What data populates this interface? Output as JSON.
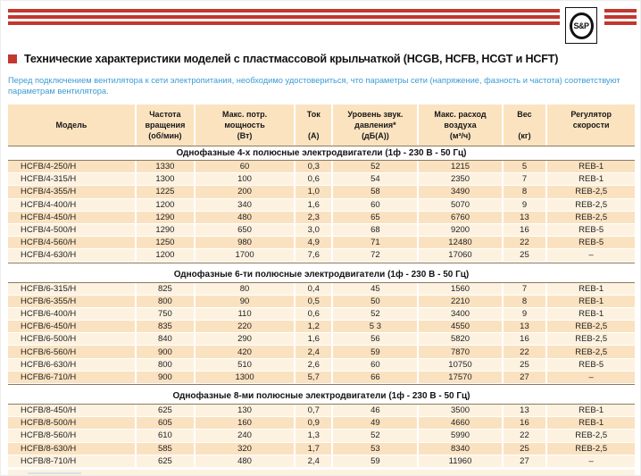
{
  "logo": {
    "text": "S&P"
  },
  "title": {
    "text": "Технические характеристики моделей с пластмассовой крыльчаткой (HCGB, HCFB, HCGT и HCFT)"
  },
  "note": {
    "text": "Перед подключением вентилятора к сети электропитания, необходимо удостовериться, что параметры сети (напряжение, фазность и частота) соответствуют параметрам вентилятора."
  },
  "colors": {
    "brand_red": "#c2372e",
    "note_blue": "#3a9bd5",
    "header_bg": "#fbe3c0",
    "row_light": "#fdf2e0",
    "row_dark": "#fae2c0"
  },
  "table": {
    "columns": [
      {
        "id": "model",
        "lines": [
          "Модель"
        ]
      },
      {
        "id": "rpm",
        "lines": [
          "Частота",
          "вращения",
          "(об/мин)"
        ]
      },
      {
        "id": "power",
        "lines": [
          "Макс. потр.",
          "мощность",
          "(Вт)"
        ]
      },
      {
        "id": "current",
        "lines": [
          "Ток",
          "",
          "(А)"
        ]
      },
      {
        "id": "noise",
        "lines": [
          "Уровень звук.",
          "давления*",
          "(дБ(А))"
        ]
      },
      {
        "id": "airflow",
        "lines": [
          "Макс. расход",
          "воздуха",
          "(м³/ч)"
        ]
      },
      {
        "id": "weight",
        "lines": [
          "Вес",
          "",
          "(кг)"
        ]
      },
      {
        "id": "controller",
        "lines": [
          "Регулятор",
          "скорости"
        ]
      }
    ],
    "sections": [
      {
        "title": "Однофазные 4-х полюсные электродвигатели (1ф - 230 В - 50 Гц)",
        "rows": [
          [
            "HCFB/4-250/H",
            "1330",
            "60",
            "0,3",
            "52",
            "1215",
            "5",
            "REB-1"
          ],
          [
            "HCFB/4-315/H",
            "1300",
            "100",
            "0,6",
            "54",
            "2350",
            "7",
            "REB-1"
          ],
          [
            "HCFB/4-355/H",
            "1225",
            "200",
            "1,0",
            "58",
            "3490",
            "8",
            "REB-2,5"
          ],
          [
            "HCFB/4-400/H",
            "1200",
            "340",
            "1,6",
            "60",
            "5070",
            "9",
            "REB-2,5"
          ],
          [
            "HCFB/4-450/H",
            "1290",
            "480",
            "2,3",
            "65",
            "6760",
            "13",
            "REB-2,5"
          ],
          [
            "HCFB/4-500/H",
            "1290",
            "650",
            "3,0",
            "68",
            "9200",
            "16",
            "REB-5"
          ],
          [
            "HCFB/4-560/H",
            "1250",
            "980",
            "4,9",
            "71",
            "12480",
            "22",
            "REB-5"
          ],
          [
            "HCFB/4-630/H",
            "1200",
            "1700",
            "7,6",
            "72",
            "17060",
            "25",
            "–"
          ]
        ]
      },
      {
        "title": "Однофазные 6-ти полюсные электродвигатели (1ф - 230 В - 50 Гц)",
        "rows": [
          [
            "HCFB/6-315/H",
            "825",
            "80",
            "0,4",
            "45",
            "1560",
            "7",
            "REB-1"
          ],
          [
            "HCFB/6-355/H",
            "800",
            "90",
            "0,5",
            "50",
            "2210",
            "8",
            "REB-1"
          ],
          [
            "HCFB/6-400/H",
            "750",
            "110",
            "0,6",
            "52",
            "3400",
            "9",
            "REB-1"
          ],
          [
            "HCFB/6-450/H",
            "835",
            "220",
            "1,2",
            "5 3",
            "4550",
            "13",
            "REB-2,5"
          ],
          [
            "HCFB/6-500/H",
            "840",
            "290",
            "1,6",
            "56",
            "5820",
            "16",
            "REB-2,5"
          ],
          [
            "HCFB/6-560/H",
            "900",
            "420",
            "2,4",
            "59",
            "7870",
            "22",
            "REB-2,5"
          ],
          [
            "HCFB/6-630/H",
            "800",
            "510",
            "2,6",
            "60",
            "10750",
            "25",
            "REB-5"
          ],
          [
            "HCFB/6-710/H",
            "900",
            "1300",
            "5,7",
            "66",
            "17570",
            "27",
            "–"
          ]
        ]
      },
      {
        "title": "Однофазные 8-ми полюсные электродвигатели (1ф - 230 В - 50 Гц)",
        "rows": [
          [
            "HCFB/8-450/H",
            "625",
            "130",
            "0,7",
            "46",
            "3500",
            "13",
            "REB-1"
          ],
          [
            "HCFB/8-500/H",
            "605",
            "160",
            "0,9",
            "49",
            "4660",
            "16",
            "REB-1"
          ],
          [
            "HCFB/8-560/H",
            "610",
            "240",
            "1,3",
            "52",
            "5990",
            "22",
            "REB-2,5"
          ],
          [
            "HCFB/8-630/H",
            "585",
            "320",
            "1,7",
            "53",
            "8340",
            "25",
            "REB-2,5"
          ],
          [
            "HCFB/8-710/H",
            "625",
            "480",
            "2,4",
            "59",
            "11960",
            "27",
            "–"
          ]
        ]
      }
    ]
  }
}
